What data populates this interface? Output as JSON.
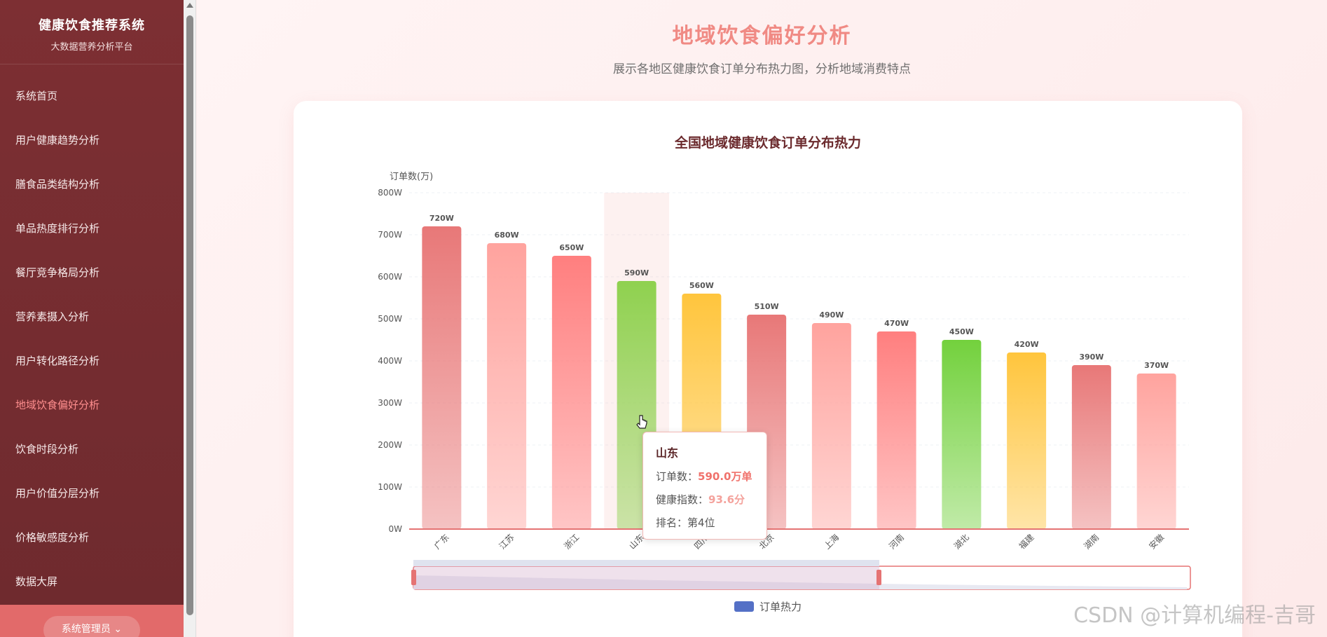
{
  "sidebar": {
    "brand_title": "健康饮食推荐系统",
    "brand_subtitle": "大数据营养分析平台",
    "items": [
      {
        "label": "系统首页",
        "active": false
      },
      {
        "label": "用户健康趋势分析",
        "active": false
      },
      {
        "label": "膳食品类结构分析",
        "active": false
      },
      {
        "label": "单品热度排行分析",
        "active": false
      },
      {
        "label": "餐厅竞争格局分析",
        "active": false
      },
      {
        "label": "营养素摄入分析",
        "active": false
      },
      {
        "label": "用户转化路径分析",
        "active": false
      },
      {
        "label": "地域饮食偏好分析",
        "active": true
      },
      {
        "label": "饮食时段分析",
        "active": false
      },
      {
        "label": "用户价值分层分析",
        "active": false
      },
      {
        "label": "价格敏感度分析",
        "active": false
      },
      {
        "label": "数据大屏",
        "active": false
      }
    ],
    "system_button": "系统管理员 ⌄"
  },
  "page": {
    "title": "地域饮食偏好分析",
    "subtitle": "展示各地区健康饮食订单分布热力图，分析地域消费特点"
  },
  "chart_data": {
    "type": "bar",
    "title": "全国地域健康饮食订单分布热力",
    "ylabel": "订单数(万)",
    "xlabel": "",
    "ylim": [
      0,
      800
    ],
    "yticks": [
      "0W",
      "100W",
      "200W",
      "300W",
      "400W",
      "500W",
      "600W",
      "700W",
      "800W"
    ],
    "categories": [
      "广东",
      "江苏",
      "浙江",
      "山东",
      "四川",
      "北京",
      "上海",
      "河南",
      "湖北",
      "福建",
      "湖南",
      "安徽"
    ],
    "values": [
      720,
      680,
      650,
      590,
      560,
      510,
      490,
      470,
      450,
      420,
      390,
      370
    ],
    "data_labels": [
      "720W",
      "680W",
      "650W",
      "590W",
      "560W",
      "510W",
      "490W",
      "470W",
      "450W",
      "420W",
      "390W",
      "370W"
    ],
    "bar_colors": [
      "#e87878",
      "#ffa39e",
      "#ff7f7f",
      "#8fd14f",
      "#ffc53d",
      "#e87878",
      "#ffa39e",
      "#ff7f7f",
      "#73d13d",
      "#ffc53d",
      "#e87878",
      "#ffa39e"
    ],
    "highlighted_index": 3,
    "legend": [
      "订单热力"
    ],
    "legend_color": "#5470c6",
    "grid": true
  },
  "tooltip": {
    "title": "山东",
    "orders_label": "订单数：",
    "orders_value": "590.0万单",
    "health_label": "健康指数：",
    "health_value": "93.6分",
    "rank_text": "排名：第4位"
  },
  "watermark": "CSDN @计算机编程-吉哥"
}
